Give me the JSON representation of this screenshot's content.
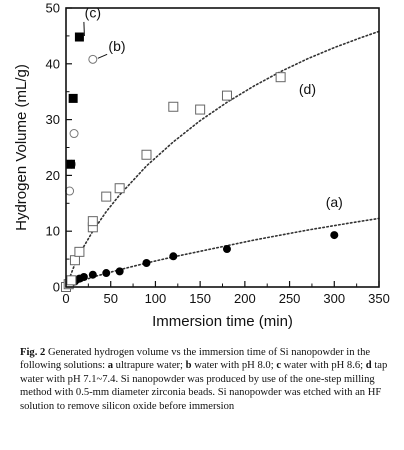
{
  "chart_data": {
    "type": "scatter",
    "xlabel": "Immersion time (min)",
    "ylabel": "Hydrogen Volume (mL/g)",
    "xlim": [
      0,
      350
    ],
    "ylim": [
      0,
      50
    ],
    "x_ticks": [
      "0",
      "50",
      "100",
      "150",
      "200",
      "250",
      "300",
      "350"
    ],
    "y_ticks": [
      "0",
      "10",
      "20",
      "30",
      "40",
      "50"
    ],
    "grid": false,
    "series": [
      {
        "name": "(a)",
        "marker": "filled-circle",
        "points": [
          [
            0,
            0
          ],
          [
            3,
            0.4
          ],
          [
            6,
            0.7
          ],
          [
            10,
            1.0
          ],
          [
            15,
            1.5
          ],
          [
            20,
            1.8
          ],
          [
            30,
            2.2
          ],
          [
            45,
            2.5
          ],
          [
            60,
            2.8
          ],
          [
            90,
            4.3
          ],
          [
            120,
            5.5
          ],
          [
            180,
            6.8
          ],
          [
            300,
            9.3
          ]
        ],
        "fit_curve": [
          [
            0,
            0
          ],
          [
            30,
            1.8
          ],
          [
            60,
            3.1
          ],
          [
            90,
            4.3
          ],
          [
            120,
            5.4
          ],
          [
            150,
            6.4
          ],
          [
            180,
            7.4
          ],
          [
            210,
            8.4
          ],
          [
            240,
            9.3
          ],
          [
            270,
            10.2
          ],
          [
            300,
            11.0
          ],
          [
            330,
            11.8
          ],
          [
            350,
            12.3
          ]
        ]
      },
      {
        "name": "(b)",
        "marker": "open-circle",
        "points": [
          [
            4,
            17.2
          ],
          [
            6,
            22.0
          ],
          [
            9,
            27.5
          ],
          [
            30,
            40.8
          ]
        ]
      },
      {
        "name": "(c)",
        "marker": "filled-square",
        "points": [
          [
            5,
            22.0
          ],
          [
            8,
            33.8
          ],
          [
            15,
            44.8
          ]
        ]
      },
      {
        "name": "(d)",
        "marker": "open-square",
        "points": [
          [
            0,
            0
          ],
          [
            3,
            0.5
          ],
          [
            6,
            1.2
          ],
          [
            10,
            4.8
          ],
          [
            15,
            6.3
          ],
          [
            30,
            10.7
          ],
          [
            30,
            11.8
          ],
          [
            45,
            16.2
          ],
          [
            60,
            17.7
          ],
          [
            90,
            23.7
          ],
          [
            120,
            32.3
          ],
          [
            150,
            31.8
          ],
          [
            180,
            34.3
          ],
          [
            240,
            37.6
          ]
        ],
        "fit_curve": [
          [
            0,
            0
          ],
          [
            10,
            4.1
          ],
          [
            20,
            7.3
          ],
          [
            30,
            10.0
          ],
          [
            45,
            13.5
          ],
          [
            60,
            16.5
          ],
          [
            90,
            21.7
          ],
          [
            120,
            26.0
          ],
          [
            150,
            29.8
          ],
          [
            180,
            33.1
          ],
          [
            210,
            36.0
          ],
          [
            240,
            38.6
          ],
          [
            270,
            40.9
          ],
          [
            300,
            42.9
          ],
          [
            330,
            44.7
          ],
          [
            350,
            45.8
          ]
        ]
      }
    ]
  },
  "caption": {
    "fig_label": "Fig. 2",
    "seg1": "  Generated hydrogen volume vs the immersion time of Si nanopowder in the following solutions: ",
    "a_label": "a",
    "a_text": " ultrapure water; ",
    "b_label": "b",
    "b_text": " water with pH 8.0; ",
    "c_label": "c",
    "c_text": " water with pH 8.6; ",
    "d_label": "d",
    "d_text": " tap water with pH 7.1~7.4. Si nanopowder was produced by use of the one-step milling method with 0.5-mm diameter zirconia beads. Si nanopowder was etched with an HF solution to remove silicon oxide before immersion"
  }
}
